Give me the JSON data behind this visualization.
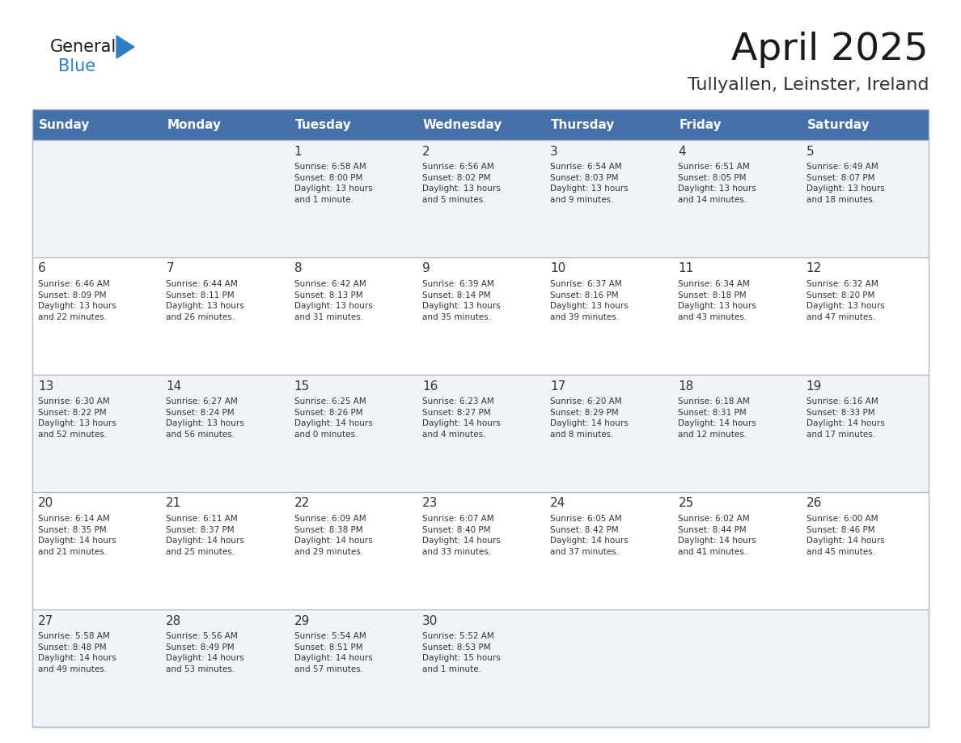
{
  "title": "April 2025",
  "subtitle": "Tullyallen, Leinster, Ireland",
  "header_color": "#4472a8",
  "header_text_color": "#ffffff",
  "day_headers": [
    "Sunday",
    "Monday",
    "Tuesday",
    "Wednesday",
    "Thursday",
    "Friday",
    "Saturday"
  ],
  "weeks": [
    [
      {
        "day": "",
        "info": ""
      },
      {
        "day": "",
        "info": ""
      },
      {
        "day": "1",
        "info": "Sunrise: 6:58 AM\nSunset: 8:00 PM\nDaylight: 13 hours\nand 1 minute."
      },
      {
        "day": "2",
        "info": "Sunrise: 6:56 AM\nSunset: 8:02 PM\nDaylight: 13 hours\nand 5 minutes."
      },
      {
        "day": "3",
        "info": "Sunrise: 6:54 AM\nSunset: 8:03 PM\nDaylight: 13 hours\nand 9 minutes."
      },
      {
        "day": "4",
        "info": "Sunrise: 6:51 AM\nSunset: 8:05 PM\nDaylight: 13 hours\nand 14 minutes."
      },
      {
        "day": "5",
        "info": "Sunrise: 6:49 AM\nSunset: 8:07 PM\nDaylight: 13 hours\nand 18 minutes."
      }
    ],
    [
      {
        "day": "6",
        "info": "Sunrise: 6:46 AM\nSunset: 8:09 PM\nDaylight: 13 hours\nand 22 minutes."
      },
      {
        "day": "7",
        "info": "Sunrise: 6:44 AM\nSunset: 8:11 PM\nDaylight: 13 hours\nand 26 minutes."
      },
      {
        "day": "8",
        "info": "Sunrise: 6:42 AM\nSunset: 8:13 PM\nDaylight: 13 hours\nand 31 minutes."
      },
      {
        "day": "9",
        "info": "Sunrise: 6:39 AM\nSunset: 8:14 PM\nDaylight: 13 hours\nand 35 minutes."
      },
      {
        "day": "10",
        "info": "Sunrise: 6:37 AM\nSunset: 8:16 PM\nDaylight: 13 hours\nand 39 minutes."
      },
      {
        "day": "11",
        "info": "Sunrise: 6:34 AM\nSunset: 8:18 PM\nDaylight: 13 hours\nand 43 minutes."
      },
      {
        "day": "12",
        "info": "Sunrise: 6:32 AM\nSunset: 8:20 PM\nDaylight: 13 hours\nand 47 minutes."
      }
    ],
    [
      {
        "day": "13",
        "info": "Sunrise: 6:30 AM\nSunset: 8:22 PM\nDaylight: 13 hours\nand 52 minutes."
      },
      {
        "day": "14",
        "info": "Sunrise: 6:27 AM\nSunset: 8:24 PM\nDaylight: 13 hours\nand 56 minutes."
      },
      {
        "day": "15",
        "info": "Sunrise: 6:25 AM\nSunset: 8:26 PM\nDaylight: 14 hours\nand 0 minutes."
      },
      {
        "day": "16",
        "info": "Sunrise: 6:23 AM\nSunset: 8:27 PM\nDaylight: 14 hours\nand 4 minutes."
      },
      {
        "day": "17",
        "info": "Sunrise: 6:20 AM\nSunset: 8:29 PM\nDaylight: 14 hours\nand 8 minutes."
      },
      {
        "day": "18",
        "info": "Sunrise: 6:18 AM\nSunset: 8:31 PM\nDaylight: 14 hours\nand 12 minutes."
      },
      {
        "day": "19",
        "info": "Sunrise: 6:16 AM\nSunset: 8:33 PM\nDaylight: 14 hours\nand 17 minutes."
      }
    ],
    [
      {
        "day": "20",
        "info": "Sunrise: 6:14 AM\nSunset: 8:35 PM\nDaylight: 14 hours\nand 21 minutes."
      },
      {
        "day": "21",
        "info": "Sunrise: 6:11 AM\nSunset: 8:37 PM\nDaylight: 14 hours\nand 25 minutes."
      },
      {
        "day": "22",
        "info": "Sunrise: 6:09 AM\nSunset: 8:38 PM\nDaylight: 14 hours\nand 29 minutes."
      },
      {
        "day": "23",
        "info": "Sunrise: 6:07 AM\nSunset: 8:40 PM\nDaylight: 14 hours\nand 33 minutes."
      },
      {
        "day": "24",
        "info": "Sunrise: 6:05 AM\nSunset: 8:42 PM\nDaylight: 14 hours\nand 37 minutes."
      },
      {
        "day": "25",
        "info": "Sunrise: 6:02 AM\nSunset: 8:44 PM\nDaylight: 14 hours\nand 41 minutes."
      },
      {
        "day": "26",
        "info": "Sunrise: 6:00 AM\nSunset: 8:46 PM\nDaylight: 14 hours\nand 45 minutes."
      }
    ],
    [
      {
        "day": "27",
        "info": "Sunrise: 5:58 AM\nSunset: 8:48 PM\nDaylight: 14 hours\nand 49 minutes."
      },
      {
        "day": "28",
        "info": "Sunrise: 5:56 AM\nSunset: 8:49 PM\nDaylight: 14 hours\nand 53 minutes."
      },
      {
        "day": "29",
        "info": "Sunrise: 5:54 AM\nSunset: 8:51 PM\nDaylight: 14 hours\nand 57 minutes."
      },
      {
        "day": "30",
        "info": "Sunrise: 5:52 AM\nSunset: 8:53 PM\nDaylight: 15 hours\nand 1 minute."
      },
      {
        "day": "",
        "info": ""
      },
      {
        "day": "",
        "info": ""
      },
      {
        "day": "",
        "info": ""
      }
    ]
  ],
  "logo_text1": "General",
  "logo_text2": "Blue",
  "logo_color1": "#1a1a1a",
  "logo_color2": "#2e7ec2",
  "line_color": "#b0b8c8",
  "text_color": "#333333",
  "cell_bg_even": "#f0f4f8",
  "cell_bg_odd": "#ffffff"
}
